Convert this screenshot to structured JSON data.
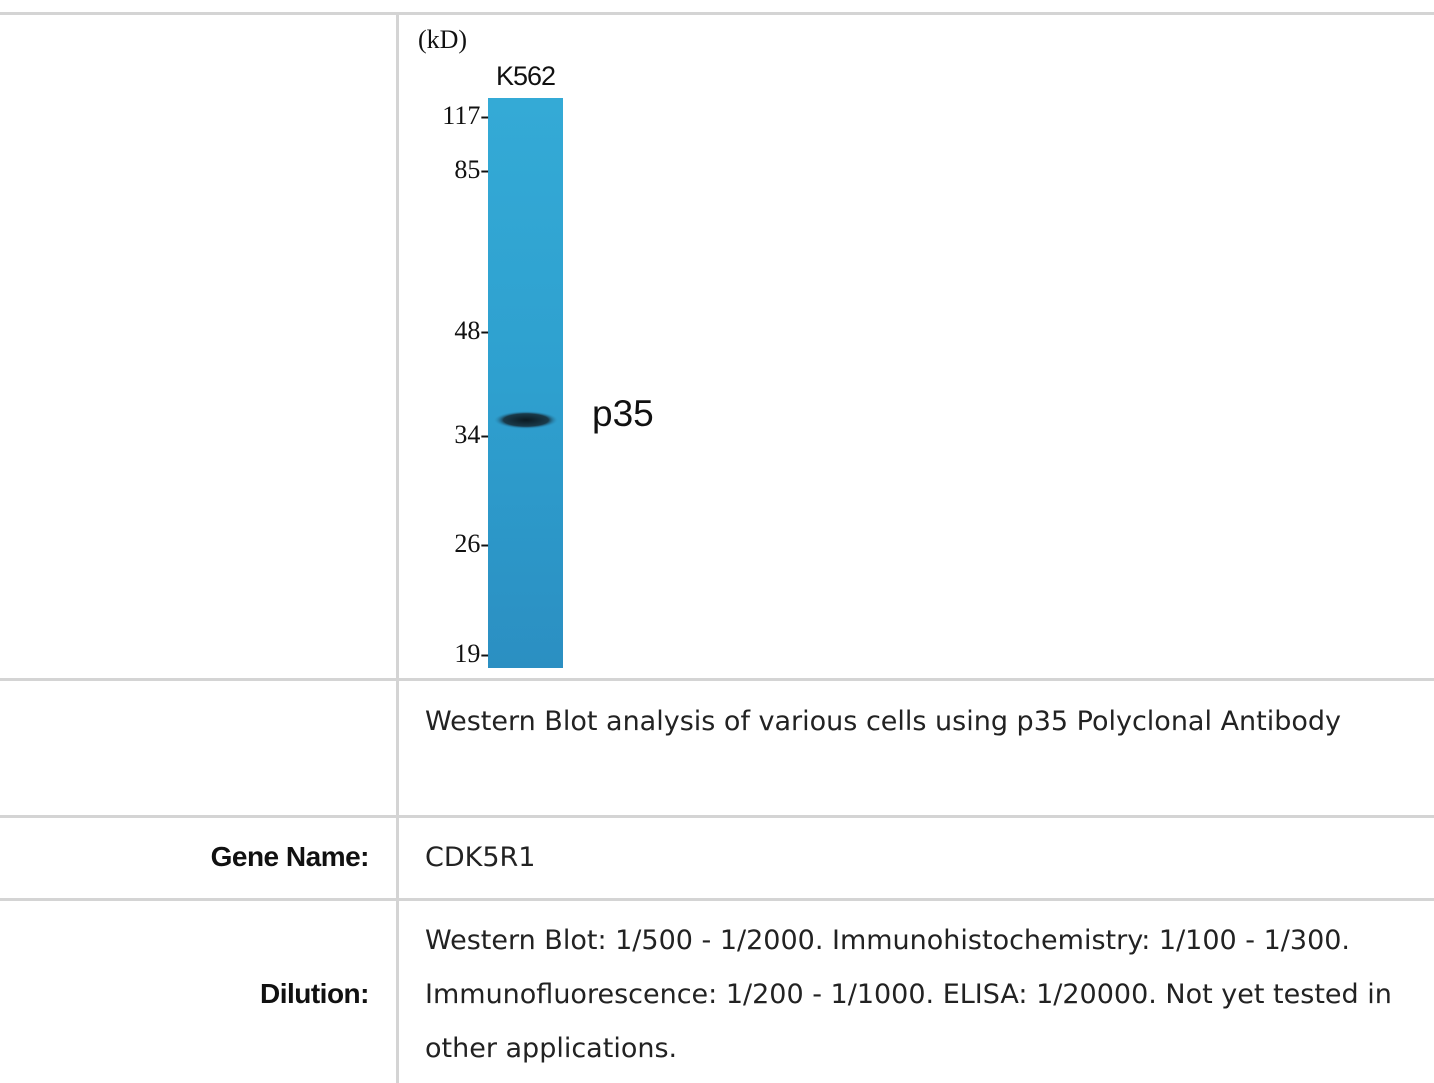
{
  "table": {
    "rows": [
      {
        "image": {
          "unit": "(kD)",
          "lane": "K562",
          "markers": [
            "117-",
            "85-",
            "48-",
            "34-",
            "26-",
            "19-"
          ],
          "band": "p35"
        }
      },
      {
        "value": "Western Blot analysis of various cells using p35 Polyclonal Antibody"
      },
      {
        "label": "Gene Name:",
        "value": "CDK5R1"
      },
      {
        "label": "Dilution:",
        "value": "Western Blot: 1/500 - 1/2000. Immunohistochemistry: 1/100 - 1/300. Immunofluorescence: 1/200 - 1/1000. ELISA: 1/20000. Not yet tested in other applications."
      }
    ]
  }
}
